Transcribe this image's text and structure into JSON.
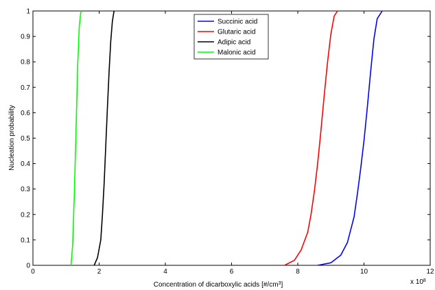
{
  "chart_data": {
    "type": "line",
    "title": "",
    "xlabel": "Concentration of dicarboxylic acids [#/cm",
    "xlabel_superscript": "3",
    "xlabel_suffix": "]",
    "ylabel": "Nucleation probability",
    "xlim": [
      0,
      12
    ],
    "ylim": [
      0,
      1
    ],
    "x_multiplier_text": "x 10",
    "x_multiplier_exponent": "8",
    "x_ticks": [
      "0",
      "2",
      "4",
      "6",
      "8",
      "10",
      "12"
    ],
    "y_ticks": [
      "0",
      "0.1",
      "0.2",
      "0.3",
      "0.4",
      "0.5",
      "0.6",
      "0.7",
      "0.8",
      "0.9",
      "1"
    ],
    "legend_position": "top-center",
    "grid": false,
    "series": [
      {
        "name": "Succinic acid",
        "color": "#0000ff",
        "x": [
          8.6,
          9.0,
          9.3,
          9.5,
          9.7,
          9.8,
          9.9,
          10.0,
          10.1,
          10.2,
          10.3,
          10.4,
          10.55
        ],
        "y": [
          0,
          0.01,
          0.04,
          0.09,
          0.19,
          0.28,
          0.38,
          0.49,
          0.62,
          0.76,
          0.89,
          0.97,
          1.0
        ]
      },
      {
        "name": "Glutaric acid",
        "color": "#ff0000",
        "x": [
          7.6,
          7.9,
          8.1,
          8.3,
          8.4,
          8.5,
          8.6,
          8.7,
          8.8,
          8.9,
          9.0,
          9.1,
          9.2
        ],
        "y": [
          0,
          0.02,
          0.06,
          0.13,
          0.2,
          0.29,
          0.4,
          0.53,
          0.67,
          0.8,
          0.91,
          0.98,
          1.0
        ]
      },
      {
        "name": "Adipic acid",
        "color": "#000000",
        "x": [
          1.85,
          1.95,
          2.05,
          2.1,
          2.15,
          2.2,
          2.25,
          2.3,
          2.35,
          2.4,
          2.45
        ],
        "y": [
          0,
          0.03,
          0.1,
          0.2,
          0.32,
          0.47,
          0.62,
          0.76,
          0.88,
          0.96,
          1.0
        ]
      },
      {
        "name": "Malonic acid",
        "color": "#00ff00",
        "x": [
          1.15,
          1.2,
          1.25,
          1.3,
          1.35,
          1.4,
          1.45
        ],
        "y": [
          0,
          0.08,
          0.28,
          0.52,
          0.78,
          0.94,
          1.0
        ]
      }
    ]
  }
}
